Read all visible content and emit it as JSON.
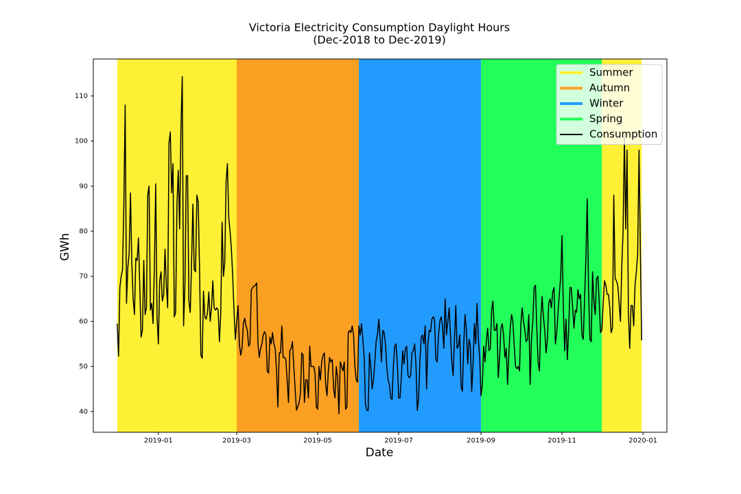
{
  "chart_data": {
    "type": "line",
    "title": "Victoria Electricity Consumption Daylight Hours",
    "subtitle": "(Dec-2018 to Dec-2019)",
    "x_label": "Date",
    "y_label": "GWh",
    "xlim": [
      "2018-11-13",
      "2020-01-19"
    ],
    "xticks": [
      {
        "value": "2019-01-01",
        "label": "2019-01"
      },
      {
        "value": "2019-03-01",
        "label": "2019-03"
      },
      {
        "value": "2019-05-01",
        "label": "2019-05"
      },
      {
        "value": "2019-07-01",
        "label": "2019-07"
      },
      {
        "value": "2019-09-01",
        "label": "2019-09"
      },
      {
        "value": "2019-11-01",
        "label": "2019-11"
      },
      {
        "value": "2020-01-01",
        "label": "2020-01"
      }
    ],
    "ylim": [
      35.4,
      118.2
    ],
    "yticks": [
      40,
      50,
      60,
      70,
      80,
      90,
      100,
      110
    ],
    "legend": "upper right",
    "seasons": [
      {
        "name": "Summer",
        "color": "#fef035",
        "spans": [
          [
            "2018-12-01",
            "2019-03-01"
          ],
          [
            "2019-12-01",
            "2019-12-31"
          ]
        ]
      },
      {
        "name": "Autumn",
        "color": "#fba022",
        "spans": [
          [
            "2019-03-01",
            "2019-06-01"
          ]
        ]
      },
      {
        "name": "Winter",
        "color": "#229bff",
        "spans": [
          [
            "2019-06-01",
            "2019-09-01"
          ]
        ]
      },
      {
        "name": "Spring",
        "color": "#22fe5a",
        "spans": [
          [
            "2019-09-01",
            "2019-12-01"
          ]
        ]
      }
    ],
    "x": [
      "2018-12-01",
      "2018-12-02",
      "2018-12-03",
      "2018-12-04",
      "2018-12-05",
      "2018-12-06",
      "2018-12-07",
      "2018-12-08",
      "2018-12-09",
      "2018-12-10",
      "2018-12-11",
      "2018-12-12",
      "2018-12-13",
      "2018-12-14",
      "2018-12-15",
      "2018-12-16",
      "2018-12-17",
      "2018-12-18",
      "2018-12-19",
      "2018-12-20",
      "2018-12-21",
      "2018-12-22",
      "2018-12-23",
      "2018-12-24",
      "2018-12-25",
      "2018-12-26",
      "2018-12-27",
      "2018-12-28",
      "2018-12-29",
      "2018-12-30",
      "2018-12-31",
      "2019-01-01",
      "2019-01-02",
      "2019-01-03",
      "2019-01-04",
      "2019-01-05",
      "2019-01-06",
      "2019-01-07",
      "2019-01-08",
      "2019-01-09",
      "2019-01-10",
      "2019-01-11",
      "2019-01-12",
      "2019-01-13",
      "2019-01-14",
      "2019-01-15",
      "2019-01-16",
      "2019-01-17",
      "2019-01-18",
      "2019-01-19",
      "2019-01-20",
      "2019-01-21",
      "2019-01-22",
      "2019-01-23",
      "2019-01-24",
      "2019-01-25",
      "2019-01-26",
      "2019-01-27",
      "2019-01-28",
      "2019-01-29",
      "2019-01-30",
      "2019-01-31",
      "2019-02-01",
      "2019-02-02",
      "2019-02-03",
      "2019-02-04",
      "2019-02-05",
      "2019-02-06",
      "2019-02-07",
      "2019-02-08",
      "2019-02-09",
      "2019-02-10",
      "2019-02-11",
      "2019-02-12",
      "2019-02-13",
      "2019-02-14",
      "2019-02-15",
      "2019-02-16",
      "2019-02-17",
      "2019-02-18",
      "2019-02-19",
      "2019-02-20",
      "2019-02-21",
      "2019-02-22",
      "2019-02-23",
      "2019-02-24",
      "2019-02-25",
      "2019-02-26",
      "2019-02-27",
      "2019-02-28",
      "2019-03-01",
      "2019-03-02",
      "2019-03-03",
      "2019-03-04",
      "2019-03-05",
      "2019-03-06",
      "2019-03-07",
      "2019-03-08",
      "2019-03-09",
      "2019-03-10",
      "2019-03-11",
      "2019-03-12",
      "2019-03-13",
      "2019-03-14",
      "2019-03-15",
      "2019-03-16",
      "2019-03-17",
      "2019-03-18",
      "2019-03-19",
      "2019-03-20",
      "2019-03-21",
      "2019-03-22",
      "2019-03-23",
      "2019-03-24",
      "2019-03-25",
      "2019-03-26",
      "2019-03-27",
      "2019-03-28",
      "2019-03-29",
      "2019-03-30",
      "2019-03-31",
      "2019-04-01",
      "2019-04-02",
      "2019-04-03",
      "2019-04-04",
      "2019-04-05",
      "2019-04-06",
      "2019-04-07",
      "2019-04-08",
      "2019-04-09",
      "2019-04-10",
      "2019-04-11",
      "2019-04-12",
      "2019-04-13",
      "2019-04-14",
      "2019-04-15",
      "2019-04-16",
      "2019-04-17",
      "2019-04-18",
      "2019-04-19",
      "2019-04-20",
      "2019-04-21",
      "2019-04-22",
      "2019-04-23",
      "2019-04-24",
      "2019-04-25",
      "2019-04-26",
      "2019-04-27",
      "2019-04-28",
      "2019-04-29",
      "2019-04-30",
      "2019-05-01",
      "2019-05-02",
      "2019-05-03",
      "2019-05-04",
      "2019-05-05",
      "2019-05-06",
      "2019-05-07",
      "2019-05-08",
      "2019-05-09",
      "2019-05-10",
      "2019-05-11",
      "2019-05-12",
      "2019-05-13",
      "2019-05-14",
      "2019-05-15",
      "2019-05-16",
      "2019-05-17",
      "2019-05-18",
      "2019-05-19",
      "2019-05-20",
      "2019-05-21",
      "2019-05-22",
      "2019-05-23",
      "2019-05-24",
      "2019-05-25",
      "2019-05-26",
      "2019-05-27",
      "2019-05-28",
      "2019-05-29",
      "2019-05-30",
      "2019-05-31",
      "2019-06-01",
      "2019-06-02",
      "2019-06-03",
      "2019-06-04",
      "2019-06-05",
      "2019-06-06",
      "2019-06-07",
      "2019-06-08",
      "2019-06-09",
      "2019-06-10",
      "2019-06-11",
      "2019-06-12",
      "2019-06-13",
      "2019-06-14",
      "2019-06-15",
      "2019-06-16",
      "2019-06-17",
      "2019-06-18",
      "2019-06-19",
      "2019-06-20",
      "2019-06-21",
      "2019-06-22",
      "2019-06-23",
      "2019-06-24",
      "2019-06-25",
      "2019-06-26",
      "2019-06-27",
      "2019-06-28",
      "2019-06-29",
      "2019-06-30",
      "2019-07-01",
      "2019-07-02",
      "2019-07-03",
      "2019-07-04",
      "2019-07-05",
      "2019-07-06",
      "2019-07-07",
      "2019-07-08",
      "2019-07-09",
      "2019-07-10",
      "2019-07-11",
      "2019-07-12",
      "2019-07-13",
      "2019-07-14",
      "2019-07-15",
      "2019-07-16",
      "2019-07-17",
      "2019-07-18",
      "2019-07-19",
      "2019-07-20",
      "2019-07-21",
      "2019-07-22",
      "2019-07-23",
      "2019-07-24",
      "2019-07-25",
      "2019-07-26",
      "2019-07-27",
      "2019-07-28",
      "2019-07-29",
      "2019-07-30",
      "2019-07-31",
      "2019-08-01",
      "2019-08-02",
      "2019-08-03",
      "2019-08-04",
      "2019-08-05",
      "2019-08-06",
      "2019-08-07",
      "2019-08-08",
      "2019-08-09",
      "2019-08-10",
      "2019-08-11",
      "2019-08-12",
      "2019-08-13",
      "2019-08-14",
      "2019-08-15",
      "2019-08-16",
      "2019-08-17",
      "2019-08-18",
      "2019-08-19",
      "2019-08-20",
      "2019-08-21",
      "2019-08-22",
      "2019-08-23",
      "2019-08-24",
      "2019-08-25",
      "2019-08-26",
      "2019-08-27",
      "2019-08-28",
      "2019-08-29",
      "2019-08-30",
      "2019-08-31",
      "2019-09-01",
      "2019-09-02",
      "2019-09-03",
      "2019-09-04",
      "2019-09-05",
      "2019-09-06",
      "2019-09-07",
      "2019-09-08",
      "2019-09-09",
      "2019-09-10",
      "2019-09-11",
      "2019-09-12",
      "2019-09-13",
      "2019-09-14",
      "2019-09-15",
      "2019-09-16",
      "2019-09-17",
      "2019-09-18",
      "2019-09-19",
      "2019-09-20",
      "2019-09-21",
      "2019-09-22",
      "2019-09-23",
      "2019-09-24",
      "2019-09-25",
      "2019-09-26",
      "2019-09-27",
      "2019-09-28",
      "2019-09-29",
      "2019-09-30",
      "2019-10-01",
      "2019-10-02",
      "2019-10-03",
      "2019-10-04",
      "2019-10-05",
      "2019-10-06",
      "2019-10-07",
      "2019-10-08",
      "2019-10-09",
      "2019-10-10",
      "2019-10-11",
      "2019-10-12",
      "2019-10-13",
      "2019-10-14",
      "2019-10-15",
      "2019-10-16",
      "2019-10-17",
      "2019-10-18",
      "2019-10-19",
      "2019-10-20",
      "2019-10-21",
      "2019-10-22",
      "2019-10-23",
      "2019-10-24",
      "2019-10-25",
      "2019-10-26",
      "2019-10-27",
      "2019-10-28",
      "2019-10-29",
      "2019-10-30",
      "2019-10-31",
      "2019-11-01",
      "2019-11-02",
      "2019-11-03",
      "2019-11-04",
      "2019-11-05",
      "2019-11-06",
      "2019-11-07",
      "2019-11-08",
      "2019-11-09",
      "2019-11-10",
      "2019-11-11",
      "2019-11-12",
      "2019-11-13",
      "2019-11-14",
      "2019-11-15",
      "2019-11-16",
      "2019-11-17",
      "2019-11-18",
      "2019-11-19",
      "2019-11-20",
      "2019-11-21",
      "2019-11-22",
      "2019-11-23",
      "2019-11-24",
      "2019-11-25",
      "2019-11-26",
      "2019-11-27",
      "2019-11-28",
      "2019-11-29",
      "2019-11-30",
      "2019-12-01",
      "2019-12-02",
      "2019-12-03",
      "2019-12-04",
      "2019-12-05",
      "2019-12-06",
      "2019-12-07",
      "2019-12-08",
      "2019-12-09",
      "2019-12-10",
      "2019-12-11",
      "2019-12-12",
      "2019-12-13",
      "2019-12-14",
      "2019-12-15",
      "2019-12-16",
      "2019-12-17",
      "2019-12-18",
      "2019-12-19",
      "2019-12-20",
      "2019-12-21",
      "2019-12-22",
      "2019-12-23",
      "2019-12-24",
      "2019-12-25",
      "2019-12-26",
      "2019-12-27",
      "2019-12-28",
      "2019-12-29",
      "2019-12-30",
      "2019-12-31"
    ],
    "series": [
      {
        "name": "Consumption",
        "color": "#000000",
        "values": [
          59.5,
          52.3,
          67.5,
          70,
          71.5,
          86,
          108,
          64,
          72,
          75,
          88.5,
          73,
          65,
          61.5,
          74,
          73.5,
          78.5,
          68,
          56.5,
          58,
          73.5,
          61.5,
          63,
          88,
          90,
          62.5,
          64,
          59.5,
          72,
          90.5,
          61,
          55,
          69,
          71,
          64.5,
          66,
          76,
          68,
          63,
          99.5,
          102,
          88.5,
          95,
          61,
          62,
          86,
          93.5,
          80.5,
          103,
          114.3,
          59,
          68,
          92.3,
          92.3,
          64.5,
          62,
          73,
          86,
          71.5,
          71,
          88,
          86.5,
          72,
          52.5,
          51.8,
          66.7,
          61,
          60.5,
          62,
          66.5,
          60,
          63,
          69,
          63,
          62.5,
          63,
          62.5,
          55.5,
          62,
          82,
          70,
          73,
          91,
          95,
          83,
          80,
          76,
          70,
          62,
          56,
          60,
          63.5,
          55,
          52.5,
          54,
          59.5,
          60.7,
          59,
          58,
          54.5,
          55,
          67,
          67.5,
          67.8,
          68,
          68.5,
          55,
          52,
          54,
          55,
          57,
          57.7,
          57,
          49,
          48.5,
          56.5,
          55,
          57.5,
          55,
          54,
          49,
          41,
          53,
          53,
          59,
          52,
          52,
          51.5,
          47,
          42,
          53.5,
          54,
          55.5,
          50,
          45,
          40.3,
          41,
          42,
          44,
          53,
          52.5,
          42,
          47,
          47,
          43,
          54.5,
          50,
          50,
          50,
          48.5,
          41,
          40.5,
          50,
          47,
          51,
          52.5,
          53,
          46,
          43.5,
          49,
          52,
          51,
          51.5,
          45,
          43,
          50,
          47.5,
          39.5,
          51,
          50,
          49,
          51,
          40.5,
          41,
          57.5,
          58,
          57.5,
          59,
          57,
          50,
          47,
          46.5,
          59,
          57,
          59.5,
          56,
          52,
          41.5,
          40.3,
          40.2,
          53,
          50,
          45,
          47,
          51,
          55.5,
          57,
          60.5,
          56.5,
          51,
          58,
          57.5,
          55,
          50,
          47,
          46,
          43,
          42.7,
          50,
          54.5,
          55,
          50.5,
          43,
          43,
          47.5,
          53.5,
          50.5,
          54,
          54.5,
          48,
          47.5,
          48,
          53,
          53.5,
          55,
          50.5,
          40.2,
          43,
          51.5,
          56.5,
          57,
          55,
          59,
          45,
          55,
          58,
          57.7,
          60.5,
          61,
          60.5,
          51.5,
          51,
          57,
          60,
          61,
          59,
          54,
          65,
          57,
          60,
          63,
          57,
          51,
          48,
          56,
          63.5,
          54,
          54.5,
          57,
          45.5,
          44.5,
          55,
          61.5,
          58,
          50.5,
          56,
          54.5,
          44.5,
          50.5,
          59.5,
          55,
          64,
          56,
          52,
          43.5,
          46,
          54.5,
          51,
          55.5,
          58.5,
          53.5,
          54,
          62.5,
          64.5,
          58,
          58,
          59.5,
          47.5,
          52,
          58.5,
          59.5,
          57,
          52,
          54,
          46,
          53,
          58.5,
          61.5,
          60,
          54.5,
          50,
          49.5,
          50,
          49,
          59.5,
          63,
          60,
          58,
          55.5,
          56,
          61.5,
          46,
          56,
          60,
          67.5,
          68,
          58.5,
          51,
          49,
          60.5,
          65.5,
          61,
          58,
          53,
          56,
          64,
          65,
          63,
          66.5,
          67.5,
          55,
          57.5,
          62,
          66,
          70,
          79,
          63,
          53.5,
          60.5,
          51.5,
          58,
          67.5,
          67.5,
          63,
          58.5,
          62.5,
          62,
          67,
          65,
          66,
          57,
          56,
          65,
          74,
          87.2,
          67,
          56,
          55.5,
          71,
          64.5,
          61.5,
          69.5,
          70,
          64.5,
          57.5,
          58,
          64,
          69,
          68,
          66,
          66,
          63,
          57.5,
          58.5,
          88,
          69.5,
          69,
          68,
          64,
          60,
          72,
          80,
          101,
          80.5,
          98,
          62,
          54,
          63.5,
          63.5,
          59,
          68,
          71,
          75,
          98,
          76,
          55.8
        ]
      }
    ]
  }
}
